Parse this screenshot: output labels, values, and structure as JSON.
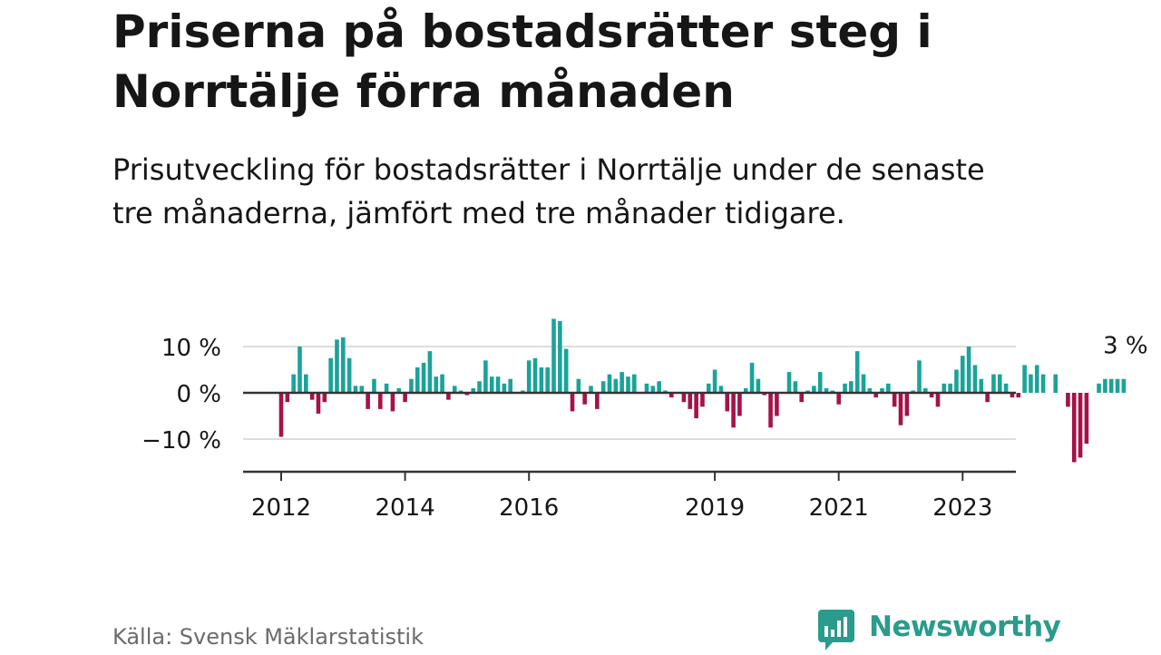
{
  "title": "Priserna på bostadsrätter steg i Norrtälje förra månaden",
  "subtitle": "Prisutveckling för bostadsrätter i Norrtälje under de senaste tre månaderna, jämfört med tre månader tidigare.",
  "source": "Källa: Svensk Mäklarstatistik",
  "brand": {
    "name": "Newsworthy",
    "icon": "bar-chart-speech-icon"
  },
  "colors": {
    "positive": "#1aa39a",
    "negative": "#a5124a",
    "brand": "#2a9b8c",
    "text": "#161616",
    "grid": "#dddddd"
  },
  "chart_data": {
    "type": "bar",
    "title": "",
    "xlabel": "",
    "ylabel": "",
    "ylim": [
      -17,
      17
    ],
    "yticks": [
      10,
      0,
      -10
    ],
    "ytick_labels": [
      "10 %",
      "0 %",
      "−10 %"
    ],
    "xticks": [
      {
        "label": "2012",
        "index": 0
      },
      {
        "label": "2014",
        "index": 20
      },
      {
        "label": "2016",
        "index": 40
      },
      {
        "label": "2019",
        "index": 70
      },
      {
        "label": "2021",
        "index": 90
      },
      {
        "label": "2023",
        "index": 110
      }
    ],
    "x_start": "2012-01",
    "unit": "%",
    "last_value_label": "3 %",
    "values": [
      -9.5,
      -2,
      4,
      10,
      4,
      -1.5,
      -4.5,
      -2,
      7.5,
      11.5,
      12,
      7.5,
      1.5,
      1.5,
      -3.5,
      3,
      -3.5,
      2,
      -4,
      1,
      -2,
      3,
      5.5,
      6.5,
      9,
      3.5,
      4,
      -1.5,
      1.5,
      0.5,
      -0.5,
      1,
      2.5,
      7,
      3.5,
      3.5,
      2,
      3,
      0,
      0.5,
      7,
      7.5,
      5.5,
      5.5,
      16,
      15.5,
      9.5,
      -4,
      3,
      -2.5,
      1.5,
      -3.5,
      2.5,
      4,
      3,
      4.5,
      3.5,
      4,
      0,
      2,
      1.5,
      2.5,
      0.5,
      -1,
      0,
      -2,
      -3.5,
      -5.5,
      -3,
      2,
      5,
      1.5,
      -4,
      -7.5,
      -5,
      1,
      6.5,
      3,
      -0.5,
      -7.5,
      -5,
      0,
      4.5,
      2.5,
      -2,
      0.5,
      1.5,
      4.5,
      1,
      0.5,
      -2.5,
      2,
      2.5,
      9,
      4,
      1,
      -1,
      1,
      2,
      -3,
      -7,
      -5,
      0.5,
      7,
      1,
      -1,
      -3,
      2,
      2,
      5,
      8,
      10,
      6,
      3,
      -2,
      4,
      4,
      2,
      -1,
      -1,
      6,
      4,
      6,
      4,
      0,
      4,
      0,
      -3,
      -15,
      -14,
      -11,
      0,
      2,
      3,
      3,
      3,
      3
    ]
  }
}
